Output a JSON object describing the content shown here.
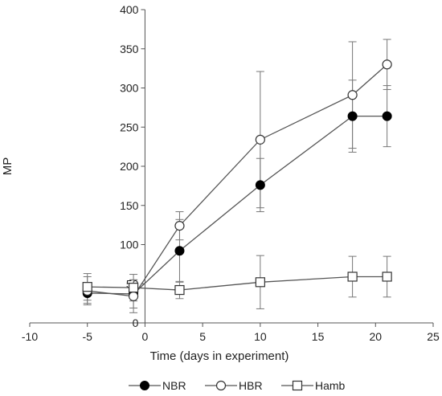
{
  "chart_data": {
    "type": "scatter",
    "title": "",
    "xlabel": "Time (days in experiment)",
    "ylabel": "MP",
    "xlim": [
      -10,
      25
    ],
    "ylim": [
      0,
      400
    ],
    "xticks": [
      -10,
      -5,
      0,
      5,
      10,
      15,
      20,
      25
    ],
    "yticks": [
      0,
      50,
      100,
      150,
      200,
      250,
      300,
      350,
      400
    ],
    "x_tick_labels": [
      "-10",
      "-5",
      "0",
      "5",
      "10",
      "15",
      "20",
      "25"
    ],
    "y_tick_labels": [
      "0",
      "50",
      "100",
      "150",
      "200",
      "250",
      "300",
      "350",
      "400"
    ],
    "grid": false,
    "legend_position": "bottom",
    "series": [
      {
        "name": "NBR",
        "marker": "filled-circle",
        "color": "#000000",
        "x": [
          -5,
          -1,
          3,
          10,
          18,
          21
        ],
        "y": [
          38,
          37,
          92,
          176,
          264,
          264
        ],
        "err": [
          13,
          18,
          40,
          34,
          46,
          39
        ]
      },
      {
        "name": "HBR",
        "marker": "open-circle",
        "color": "#000000",
        "x": [
          -5,
          -1,
          3,
          10,
          18,
          21
        ],
        "y": [
          41,
          34,
          124,
          234,
          291,
          330
        ],
        "err": [
          18,
          21,
          18,
          87,
          68,
          32
        ]
      },
      {
        "name": "Hamb",
        "marker": "open-square",
        "color": "#000000",
        "x": [
          -5,
          -1,
          3,
          10,
          18,
          21
        ],
        "y": [
          46,
          45,
          42,
          52,
          59,
          59
        ],
        "err": [
          17,
          17,
          11,
          34,
          26,
          26
        ]
      }
    ]
  }
}
